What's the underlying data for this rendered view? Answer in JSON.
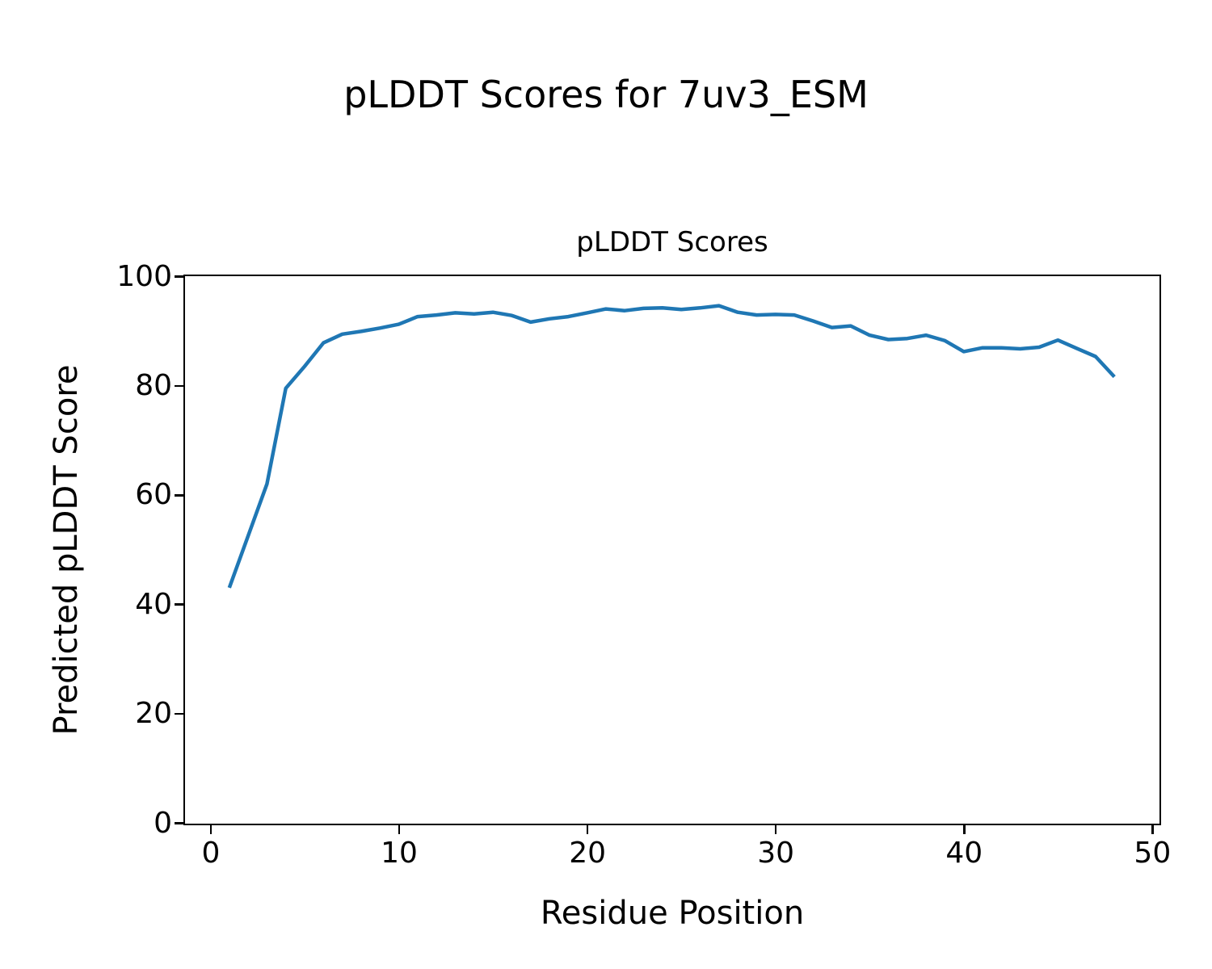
{
  "figure": {
    "suptitle": "pLDDT Scores for 7uv3_ESM"
  },
  "chart_data": {
    "type": "line",
    "title": "pLDDT Scores",
    "xlabel": "Residue Position",
    "ylabel": "Predicted pLDDT Score",
    "x": [
      1,
      2,
      3,
      4,
      5,
      6,
      7,
      8,
      9,
      10,
      11,
      12,
      13,
      14,
      15,
      16,
      17,
      18,
      19,
      20,
      21,
      22,
      23,
      24,
      25,
      26,
      27,
      28,
      29,
      30,
      31,
      32,
      33,
      34,
      35,
      36,
      37,
      38,
      39,
      40,
      41,
      42,
      43,
      44,
      45,
      46,
      47,
      48
    ],
    "y": [
      43.0,
      52.5,
      62.0,
      79.5,
      83.5,
      87.8,
      89.4,
      89.9,
      90.5,
      91.2,
      92.6,
      92.9,
      93.3,
      93.1,
      93.4,
      92.8,
      91.6,
      92.2,
      92.6,
      93.3,
      94.0,
      93.7,
      94.1,
      94.2,
      93.9,
      94.2,
      94.6,
      93.4,
      92.9,
      93.0,
      92.9,
      91.8,
      90.6,
      90.9,
      89.2,
      88.4,
      88.6,
      89.2,
      88.2,
      86.2,
      86.9,
      86.9,
      86.7,
      87.0,
      88.3,
      86.8,
      85.3,
      81.6
    ],
    "xlim": [
      -1.35,
      50.35
    ],
    "ylim": [
      0,
      100
    ],
    "xticks": [
      0,
      10,
      20,
      30,
      40,
      50
    ],
    "yticks": [
      0,
      20,
      40,
      60,
      80,
      100
    ],
    "line_color": "#1f77b4",
    "line_width": 4.5,
    "grid": false,
    "legend": "none"
  }
}
